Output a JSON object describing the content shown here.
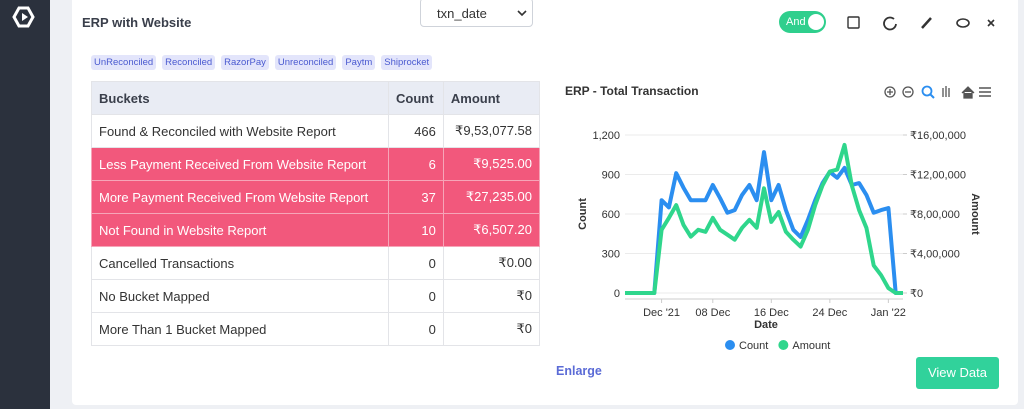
{
  "header": {
    "title": "ERP with Website",
    "dropdown": "txn_date",
    "toggle": "And"
  },
  "tags": [
    "UnReconciled",
    "Reconciled",
    "RazorPay",
    "Unreconciled",
    "Paytm",
    "Shiprocket"
  ],
  "table": {
    "columns": [
      "Buckets",
      "Count",
      "Amount"
    ],
    "rows": [
      {
        "cells": [
          "Found & Reconciled with Website Report",
          466,
          "₹9,53,077.58"
        ],
        "highlight": false
      },
      {
        "cells": [
          "Less Payment Received From Website Report",
          6,
          "₹9,525.00"
        ],
        "highlight": true
      },
      {
        "cells": [
          "More Payment Received From Website Report",
          37,
          "₹27,235.00"
        ],
        "highlight": true
      },
      {
        "cells": [
          "Not Found in Website Report",
          10,
          "₹6,507.20"
        ],
        "highlight": true
      },
      {
        "cells": [
          "Cancelled Transactions",
          0,
          "₹0.00"
        ],
        "highlight": false
      },
      {
        "cells": [
          "No Bucket Mapped",
          0,
          "₹0"
        ],
        "highlight": false
      },
      {
        "cells": [
          "More Than 1 Bucket Mapped",
          0,
          "₹0"
        ],
        "highlight": false
      }
    ]
  },
  "chart_data": {
    "type": "line",
    "title": "ERP - Total Transaction",
    "x_label": "Date",
    "y_label": "Count",
    "y2_label": "Amount",
    "x": [
      "2021-11-26",
      "2021-11-27",
      "2021-11-28",
      "2021-11-29",
      "2021-11-30",
      "2021-12-01",
      "2021-12-02",
      "2021-12-03",
      "2021-12-04",
      "2021-12-05",
      "2021-12-06",
      "2021-12-07",
      "2021-12-08",
      "2021-12-09",
      "2021-12-10",
      "2021-12-11",
      "2021-12-12",
      "2021-12-13",
      "2021-12-14",
      "2021-12-15",
      "2021-12-16",
      "2021-12-17",
      "2021-12-18",
      "2021-12-19",
      "2021-12-20",
      "2021-12-21",
      "2021-12-22",
      "2021-12-23",
      "2021-12-24",
      "2021-12-25",
      "2021-12-26",
      "2021-12-27",
      "2021-12-28",
      "2021-12-29",
      "2021-12-30",
      "2021-12-31",
      "2022-01-01",
      "2022-01-02",
      "2022-01-03"
    ],
    "xlim": [
      "2021-11-26",
      "2022-01-03"
    ],
    "xticks": [
      {
        "value": "2021-12-01",
        "label": "Dec '21"
      },
      {
        "value": "2021-12-08",
        "label": "08 Dec"
      },
      {
        "value": "2021-12-16",
        "label": "16 Dec"
      },
      {
        "value": "2021-12-24",
        "label": "24 Dec"
      },
      {
        "value": "2022-01-01",
        "label": "Jan '22"
      }
    ],
    "ylim": [
      0,
      1200
    ],
    "yticks": [
      0,
      300,
      600,
      900,
      {
        "value": 1200,
        "label": "1,200"
      }
    ],
    "y2lim": [
      0,
      1600000
    ],
    "y2ticks": [
      {
        "value": 0,
        "label": "₹0"
      },
      {
        "value": 400000,
        "label": "₹4,00,000"
      },
      {
        "value": 800000,
        "label": "₹8,00,000"
      },
      {
        "value": 1200000,
        "label": "₹12,00,000"
      },
      {
        "value": 1600000,
        "label": "₹16,00,000"
      }
    ],
    "grid": true,
    "legend": "bottom",
    "series": [
      {
        "name": "Count",
        "color": "#2b8ef0",
        "axis": "y",
        "values": [
          0,
          0,
          0,
          0,
          0,
          705,
          650,
          910,
          800,
          705,
          705,
          705,
          820,
          720,
          610,
          630,
          745,
          820,
          705,
          1070,
          705,
          820,
          630,
          480,
          425,
          555,
          705,
          835,
          920,
          875,
          950,
          820,
          835,
          745,
          610,
          630,
          645,
          0,
          0
        ]
      },
      {
        "name": "Amount",
        "color": "#2fd68c",
        "axis": "y2",
        "values": [
          0,
          0,
          0,
          0,
          0,
          640000,
          760000,
          890000,
          690000,
          570000,
          640000,
          620000,
          760000,
          640000,
          590000,
          540000,
          660000,
          740000,
          660000,
          1060000,
          720000,
          820000,
          620000,
          540000,
          470000,
          640000,
          890000,
          1090000,
          1230000,
          1250000,
          1500000,
          1090000,
          840000,
          660000,
          280000,
          180000,
          50000,
          0,
          0
        ]
      }
    ]
  },
  "actions": {
    "enlarge": "Enlarge",
    "view_data": "View Data"
  }
}
